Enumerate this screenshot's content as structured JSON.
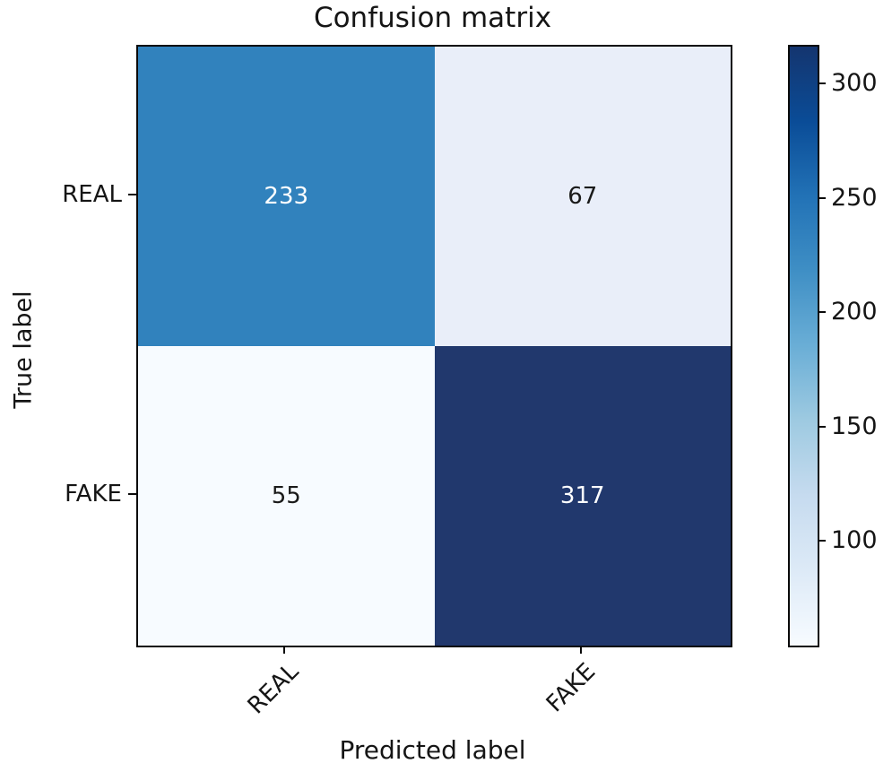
{
  "chart_data": {
    "type": "heatmap",
    "title": "Confusion matrix",
    "xlabel": "Predicted label",
    "ylabel": "True label",
    "x_categories": [
      "REAL",
      "FAKE"
    ],
    "y_categories": [
      "REAL",
      "FAKE"
    ],
    "matrix": [
      [
        233,
        67
      ],
      [
        55,
        317
      ]
    ],
    "vmin": 55,
    "vmax": 317,
    "cells": [
      {
        "row": "REAL",
        "col": "REAL",
        "value": "233",
        "bg": "#3182bd",
        "fg": "#ffffff"
      },
      {
        "row": "REAL",
        "col": "FAKE",
        "value": "67",
        "bg": "#e9eef9",
        "fg": "#1a1a1a"
      },
      {
        "row": "FAKE",
        "col": "REAL",
        "value": "55",
        "bg": "#f7fbff",
        "fg": "#1a1a1a"
      },
      {
        "row": "FAKE",
        "col": "FAKE",
        "value": "317",
        "bg": "#21386d",
        "fg": "#ffffff"
      }
    ],
    "colorbar": {
      "tick_labels": [
        "300",
        "250",
        "200",
        "150",
        "100"
      ],
      "gradient_top_to_bottom": [
        "#14356f",
        "#0a4c97",
        "#2272b6",
        "#3f8fc5",
        "#6aaed6",
        "#9ecae1",
        "#c6dbef",
        "#ddeaf7",
        "#f7fbff"
      ]
    },
    "legend_position": "right-colorbar",
    "grid": false
  }
}
